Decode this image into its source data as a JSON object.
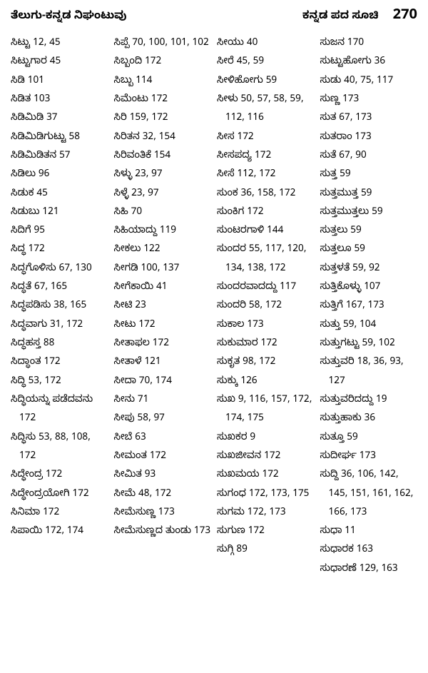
{
  "header": {
    "left": "ತೆಲುಗು-ಕನ್ನಡ ನಿಘಂಟುವು",
    "right": "ಕನ್ನಡ ಪದ ಸೂಚಿ",
    "page": "270"
  },
  "columns": [
    [
      "ಸಿಟ್ಟು  12, 45",
      "ಸಿಟ್ಟುಗಾರ  45",
      "ಸಿಡಿ  101",
      "ಸಿಡಿತ  103",
      "ಸಿಡಿಮಿಡಿ  37",
      "ಸಿಡಿಮಿಡಿಗುಟ್ಟು  58",
      "ಸಿಡಿಮಿಡಿತನ  57",
      "ಸಿಡಿಲು  96",
      "ಸಿಡುಕ  45",
      "ಸಿಡುಬು  121",
      "ಸಿದಿಗೆ  95",
      "ಸಿದ್ಧ  172",
      "ಸಿದ್ಧಗೊಳಿಸು  67, 130",
      "ಸಿದ್ಧತೆ  67, 165",
      "ಸಿದ್ಧಪಡಿಸು  38, 165",
      "ಸಿದ್ಧವಾಗು  31, 172",
      "ಸಿದ್ಧಹಸ್ತ  88",
      "ಸಿದ್ಧಾಂತ  172",
      "ಸಿದ್ಧಿ  53, 172",
      "ಸಿದ್ಧಿಯನ್ನು ಪಡೆದವನು  172",
      "ಸಿದ್ಧಿಸು  53, 88, 108, 172",
      "ಸಿದ್ಧೇಂದ್ರ  172",
      "ಸಿದ್ಧೇಂದ್ರಯೋಗಿ  172",
      "ಸಿನಿಮಾ  172",
      "ಸಿಪಾಯಿ  172, 174"
    ],
    [
      "ಸಿಪ್ಪೆ  70, 100, 101, 102",
      "ಸಿಬ್ಬಂದಿ  172",
      "ಸಿಬ್ಬು  114",
      "ಸಿಮೆಂಟು  172",
      "ಸಿರಿ  159, 172",
      "ಸಿರಿತನ  32, 154",
      "ಸಿರಿವಂತಿಕೆ  154",
      "ಸಿಳ್ಳು  23, 97",
      "ಸಿಳ್ಳೆ  23, 97",
      "ಸಿಹಿ  70",
      "ಸಿಹಿಯಾದ್ದು  119",
      "ಸೀಕಲು  122",
      "ಸೀಗಡಿ  100, 137",
      "ಸೀಗೆಕಾಯಿ  41",
      "ಸೀಟಿ  23",
      "ಸೀಟು  172",
      "ಸೀತಾಫಲ  172",
      "ಸೀತಾಳೆ  121",
      "ಸೀದಾ  70, 174",
      "ಸೀನು  71",
      "ಸೀಪು  58, 97",
      "ಸೀಬೆ  63",
      "ಸೀಮಂತ  172",
      "ಸೀಮಿತ  93",
      "ಸೀಮೆ  48, 172",
      "ಸೀಮೆಸುಣ್ಣ  173",
      "ಸೀಮೆಸುಣ್ಣದ ತುಂಡು  173"
    ],
    [
      "ಸೀಯು  40",
      "ಸೀರೆ  45, 59",
      "ಸೀಳಿಹೋಗು  59",
      "ಸೀಳು  50, 57, 58, 59, 112, 116",
      "ಸೀಸ  172",
      "ಸೀಸಪದ್ಯ  172",
      "ಸೀಸೆ  112, 172",
      "ಸುಂಕ  36, 158, 172",
      "ಸುಂಕಿಗ  172",
      "ಸುಂಟರಗಾಳಿ  144",
      "ಸುಂದರ  55, 117, 120, 134, 138, 172",
      "ಸುಂದರವಾದದ್ದು  117",
      "ಸುಂದರಿ  58, 172",
      "ಸುಕಾಲ  173",
      "ಸುಕುಮಾರ  172",
      "ಸುಕೃತ  98, 172",
      "ಸುಕ್ಕು  126",
      "ಸುಖ  9, 116, 157, 172, 174, 175",
      "ಸುಖಕರ  9",
      "ಸುಖಜೀವನ  172",
      "ಸುಖಮಯ  172",
      "ಸುಗಂಧ  172, 173, 175",
      "ಸುಗಮ  172, 173",
      "ಸುಗುಣ  172",
      "ಸುಗ್ಗಿ  89"
    ],
    [
      "ಸುಜನ  170",
      "ಸುಟ್ಟುಹೋಗು  36",
      "ಸುಡು  40, 75, 117",
      "ಸುಣ್ಣ  173",
      "ಸುತ  67, 173",
      "ಸುತರಾಂ  173",
      "ಸುತೆ  67, 90",
      "ಸುತ್ತ  59",
      "ಸುತ್ತಮುತ್ತ  59",
      "ಸುತ್ತಮುತ್ತಲು  59",
      "ಸುತ್ತಲು  59",
      "ಸುತ್ತಲೂ  59",
      "ಸುತ್ತಳತೆ  59, 92",
      "ಸುತ್ತಿಕೊಳ್ಳು  107",
      "ಸುತ್ತಿಗೆ  167, 173",
      "ಸುತ್ತು  59, 104",
      "ಸುತ್ತುಗಟ್ಟು  59, 102",
      "ಸುತ್ತುವರಿ  18, 36, 93, 127",
      "ಸುತ್ತುವರಿದದ್ದು  19",
      "ಸುತ್ತುಹಾಕು  36",
      "ಸುತ್ತೂ  59",
      "ಸುದೀರ್ಘ  173",
      "ಸುದ್ದಿ  36, 106, 142, 145, 151, 161, 162, 166, 173",
      "ಸುಧಾ  11",
      "ಸುಧಾರಕ  163",
      "ಸುಧಾರಣೆ  129, 163"
    ]
  ]
}
